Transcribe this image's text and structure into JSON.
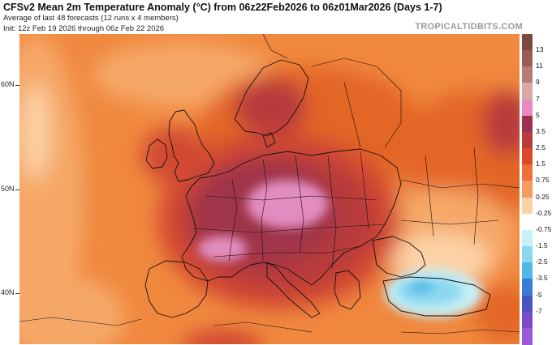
{
  "header": {
    "title": "CFSv2 Mean 2m Temperature Anomaly (°C) from 06z22Feb2026 to 06z01Mar2026 (Days 1-7)",
    "subtitle": "Average of last 48 forecasts (12 runs x 4 members)",
    "init": "Init: 12z Feb 19 2026 through 06z Feb 22 2026",
    "brand": "TROPICALTIDBITS.COM"
  },
  "latitude_labels": [
    {
      "label": "60N",
      "lat": 60
    },
    {
      "label": "50N",
      "lat": 50
    },
    {
      "label": "40N",
      "lat": 40
    }
  ],
  "colorbar": {
    "labels": [
      "13",
      "11",
      "9",
      "7",
      "5",
      "3.5",
      "2.5",
      "1.5",
      "0.75",
      "0.25",
      "-0.25",
      "-0.75",
      "-1.5",
      "-2.5",
      "-3.5",
      "-5",
      "-7"
    ],
    "colors": [
      "#7a4a42",
      "#9a5c55",
      "#b87a74",
      "#d8a8a4",
      "#e88ac0",
      "#9b3050",
      "#b83a3a",
      "#d84a28",
      "#ec7038",
      "#f59a60",
      "#fbd2a8",
      "#ffffff",
      "#c8f0f8",
      "#8ad8f0",
      "#50b8e8",
      "#3a7ad8",
      "#4a52c0",
      "#7a48c8",
      "#9a5ad8"
    ]
  },
  "map": {
    "colors": {
      "ocean_warm": "#f0883e",
      "mild": "#f5a768",
      "pale": "#fcd2a6",
      "warm": "#e46628",
      "hot": "#d24a32",
      "very_hot": "#b83a3a",
      "crimson": "#a0344a",
      "pink": "#e28cbf",
      "cold_light": "#c8f0f8",
      "cold": "#8ad8f0",
      "cold_deep": "#50b8e8",
      "border": "#111111"
    }
  }
}
